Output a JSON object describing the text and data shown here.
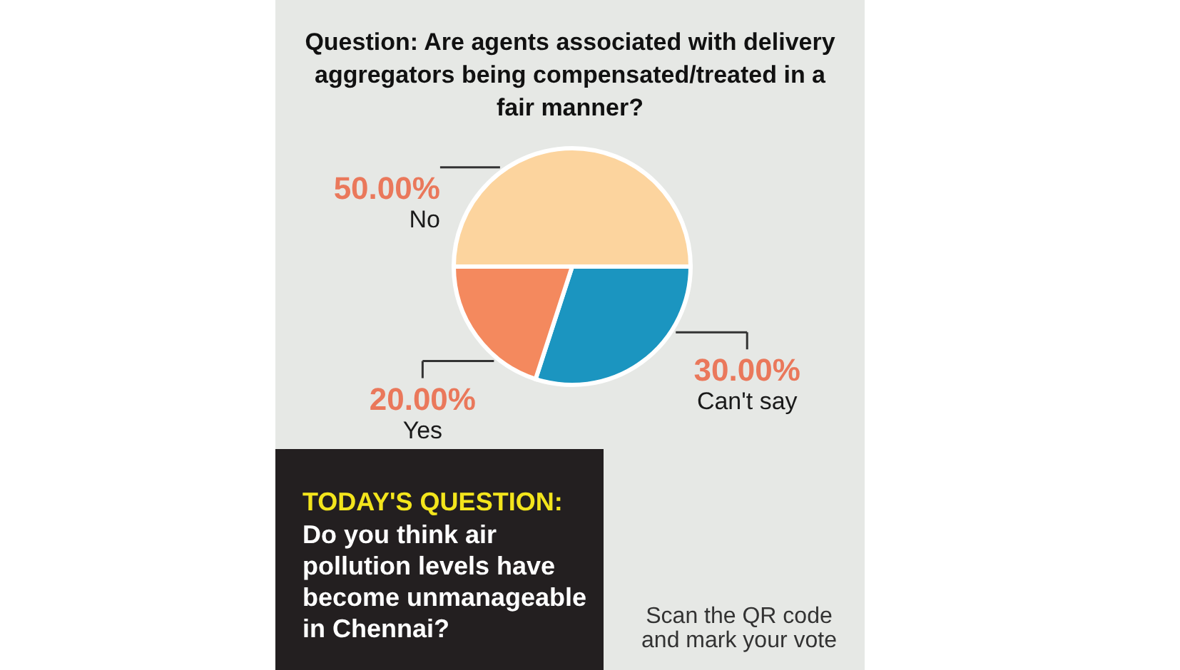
{
  "chart_data": {
    "type": "pie",
    "title": "Question: Are agents associated with delivery aggregators being compensated/treated in a fair manner?",
    "categories": [
      "No",
      "Can't say",
      "Yes"
    ],
    "values": [
      50,
      30,
      20
    ],
    "colors": [
      "#fcd49e",
      "#1b95c0",
      "#f4895e"
    ],
    "value_labels": [
      "50.00%",
      "30.00%",
      "20.00%"
    ],
    "annotations": [
      "TODAY'S QUESTION:",
      "Do you think air pollution levels have become unmanageable in Chennai?",
      "Scan the QR code and mark your vote"
    ]
  }
}
